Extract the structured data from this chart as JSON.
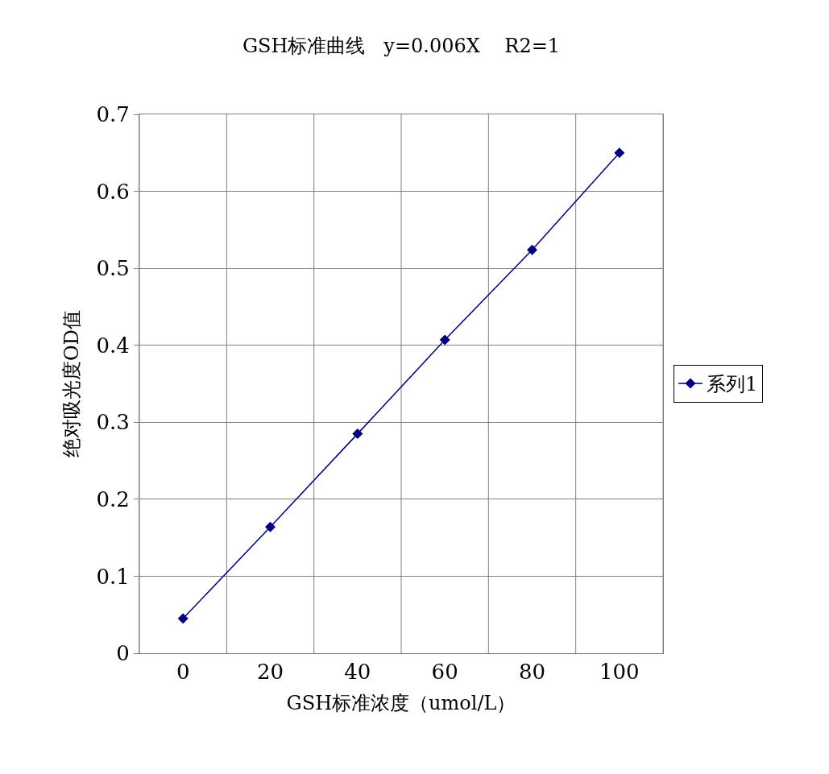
{
  "chart_data": {
    "type": "line",
    "title": "GSH标准曲线   y=0.006X    R2=1",
    "xlabel": "GSH标准浓度（umol/L）",
    "ylabel": "绝对吸光度OD值",
    "categories": [
      "0",
      "20",
      "40",
      "60",
      "80",
      "100"
    ],
    "series": [
      {
        "name": "系列1",
        "color": "#000080",
        "values": [
          0.045,
          0.164,
          0.285,
          0.407,
          0.524,
          0.65
        ]
      }
    ],
    "ylim": [
      0,
      0.7
    ],
    "yticks": [
      0,
      0.1,
      0.2,
      0.3,
      0.4,
      0.5,
      0.6,
      0.7
    ],
    "grid": true,
    "legend": "right",
    "marker": "diamond",
    "line_style": "solid"
  }
}
